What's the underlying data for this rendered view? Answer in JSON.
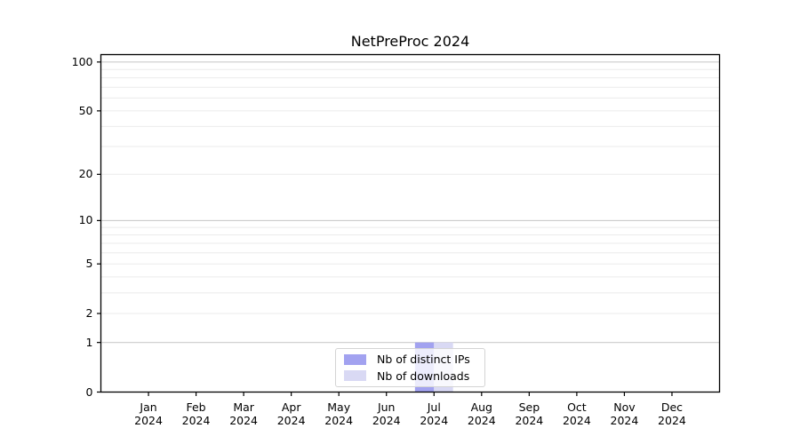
{
  "page": {
    "background_color": "#ffffff"
  },
  "chart_data": {
    "type": "bar",
    "title": "NetPreProc 2024",
    "categories": [
      "Jan\n2024",
      "Feb\n2024",
      "Mar\n2024",
      "Apr\n2024",
      "May\n2024",
      "Jun\n2024",
      "Jul\n2024",
      "Aug\n2024",
      "Sep\n2024",
      "Oct\n2024",
      "Nov\n2024",
      "Dec\n2024"
    ],
    "series": [
      {
        "name": "Nb of distinct IPs",
        "color": "#a2a2f0",
        "values": [
          0,
          0,
          0,
          0,
          0,
          0,
          1,
          0,
          0,
          0,
          0,
          0
        ]
      },
      {
        "name": "Nb of downloads",
        "color": "#d9d9f4",
        "values": [
          0,
          0,
          0,
          0,
          0,
          0,
          1,
          0,
          0,
          0,
          0,
          0
        ]
      }
    ],
    "xlabel": "",
    "ylabel": "",
    "yscale": "log1p",
    "ylim": [
      0,
      111
    ],
    "yticks": [
      0,
      1,
      2,
      5,
      10,
      20,
      50,
      100
    ],
    "grid": {
      "major_values": [
        1,
        10,
        100
      ],
      "minor_values": [
        2,
        3,
        4,
        5,
        6,
        7,
        8,
        9,
        20,
        30,
        40,
        50,
        60,
        70,
        80,
        90
      ],
      "major_color": "#cccccc",
      "minor_color": "#ebebeb"
    },
    "legend_position": "lower center",
    "axis_color": "#000000",
    "tick_label_color": "#000000"
  }
}
